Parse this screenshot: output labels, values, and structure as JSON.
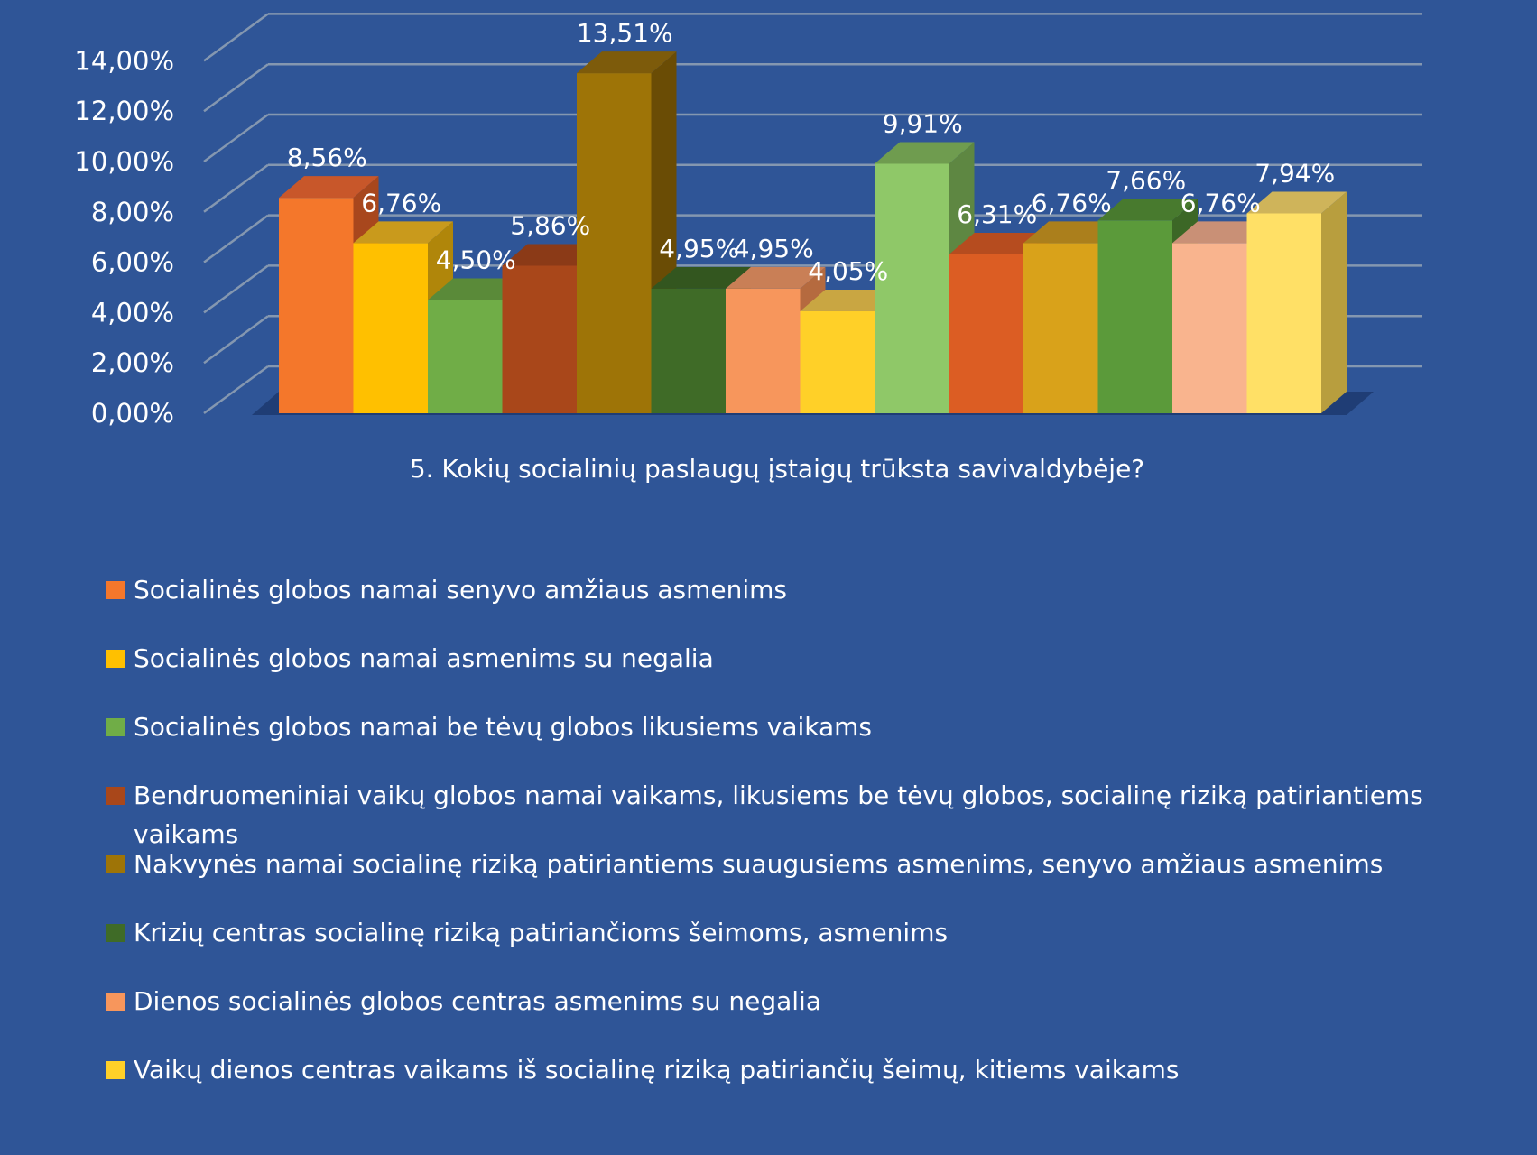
{
  "chart_data": {
    "type": "bar",
    "title": "5. Kokių socialinių paslaugų įstaigų trūksta savivaldybėje?",
    "categories": [
      "5. Kokių socialinių paslaugų įstaigų trūksta savivaldybėje?"
    ],
    "ylim": [
      0,
      14
    ],
    "y_ticks": [
      "0,00%",
      "2,00%",
      "4,00%",
      "6,00%",
      "8,00%",
      "10,00%",
      "12,00%",
      "14,00%"
    ],
    "y_tick_values": [
      0,
      2,
      4,
      6,
      8,
      10,
      12,
      14
    ],
    "grid": true,
    "legend_position": "bottom",
    "series": [
      {
        "name": "Socialinės globos namai senyvo amžiaus asmenims",
        "value": 8.56,
        "label": "8,56%",
        "color": "#f4772b",
        "top_color": "#c8572a",
        "side_color": "#a8471d",
        "in_legend": true
      },
      {
        "name": "Socialinės globos namai asmenims su negalia",
        "value": 6.76,
        "label": "6,76%",
        "color": "#ffc000",
        "top_color": "#c99a1c",
        "side_color": "#b0860a",
        "in_legend": true
      },
      {
        "name": "Socialinės globos namai be tėvų globos likusiems vaikams",
        "value": 4.5,
        "label": "4,50%",
        "color": "#70ad47",
        "top_color": "#5a8a39",
        "side_color": "#4c7630",
        "in_legend": true
      },
      {
        "name": "Bendruomeniniai vaikų globos namai vaikams, likusiems be tėvų globos, socialinę riziką patiriantiems vaikams",
        "value": 5.86,
        "label": "5,86%",
        "color": "#a9471a",
        "top_color": "#8b3a17",
        "side_color": "#74310f",
        "in_legend": true
      },
      {
        "name": "Nakvynės namai socialinę riziką patiriantiems suaugusiems asmenims, senyvo amžiaus asmenims",
        "value": 13.51,
        "label": "13,51%",
        "color": "#9e7407",
        "top_color": "#7d5b0b",
        "side_color": "#6a4c05",
        "in_legend": true
      },
      {
        "name": "Krizių centras socialinę riziką patiriančioms šeimoms, asmenims",
        "value": 4.95,
        "label": "4,95%",
        "color": "#3f6b27",
        "top_color": "#33561f",
        "side_color": "#2a481a",
        "in_legend": true
      },
      {
        "name": "Dienos socialinės globos centras asmenims su negalia",
        "value": 4.95,
        "label": "4,95%",
        "color": "#f7965c",
        "top_color": "#c97f56",
        "side_color": "#b56a3f",
        "in_legend": true
      },
      {
        "name": "Vaikų dienos centras vaikams iš socialinę riziką patiriančių šeimų, kitiems vaikams",
        "value": 4.05,
        "label": "4,05%",
        "color": "#ffd028",
        "top_color": "#c9a642",
        "side_color": "#b48f16",
        "in_legend": true
      },
      {
        "name": "",
        "value": 9.91,
        "label": "9,91%",
        "color": "#8fc868",
        "top_color": "#6f9c4f",
        "side_color": "#5e8742",
        "in_legend": false
      },
      {
        "name": "",
        "value": 6.31,
        "label": "6,31%",
        "color": "#dc5d23",
        "top_color": "#b64c1f",
        "side_color": "#9a3e16",
        "in_legend": false
      },
      {
        "name": "",
        "value": 6.76,
        "label": "6,76%",
        "color": "#d9a21a",
        "top_color": "#ab7f1c",
        "side_color": "#956d10",
        "in_legend": false
      },
      {
        "name": "",
        "value": 7.66,
        "label": "7,66%",
        "color": "#5b9a3a",
        "top_color": "#487a2e",
        "side_color": "#3c6726",
        "in_legend": false
      },
      {
        "name": "",
        "value": 6.76,
        "label": "6,76%",
        "color": "#f9b48e",
        "top_color": "#c99076",
        "side_color": "#b67d63",
        "in_legend": false
      },
      {
        "name": "",
        "value": 7.94,
        "label": "7,94%",
        "color": "#ffe066",
        "top_color": "#cfb45a",
        "side_color": "#b89e3e",
        "in_legend": false
      }
    ]
  }
}
